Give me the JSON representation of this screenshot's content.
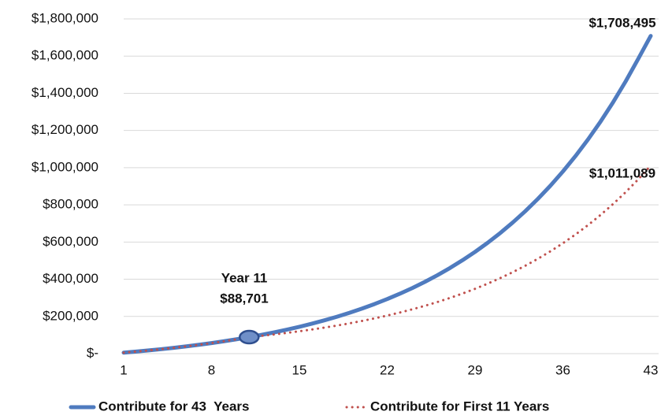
{
  "chart_data": {
    "type": "line",
    "x": [
      1,
      2,
      3,
      4,
      5,
      6,
      7,
      8,
      9,
      10,
      11,
      12,
      13,
      14,
      15,
      16,
      17,
      18,
      19,
      20,
      21,
      22,
      23,
      24,
      25,
      26,
      27,
      28,
      29,
      30,
      31,
      32,
      33,
      34,
      35,
      36,
      37,
      38,
      39,
      40,
      41,
      42,
      43
    ],
    "series": [
      {
        "name": "Contribute for 43  Years",
        "color": "#4f7bbf",
        "style": "solid",
        "values": [
          5357,
          11134,
          17373,
          24100,
          31362,
          39194,
          47650,
          56771,
          66610,
          77229,
          88701,
          101050,
          114395,
          128792,
          144320,
          161083,
          179161,
          198670,
          219725,
          242441,
          266954,
          293400,
          321935,
          352720,
          385947,
          421792,
          460471,
          502208,
          547240,
          595826,
          648257,
          704824,
          765860,
          831724,
          902788,
          979468,
          1062203,
          1151475,
          1247799,
          1351731,
          1463876,
          1584876,
          1708495
        ]
      },
      {
        "name": "Contribute for First 11 Years",
        "color": "#c0504d",
        "style": "dotted",
        "values": [
          5357,
          11134,
          17373,
          24100,
          31362,
          39194,
          47650,
          56771,
          66610,
          77229,
          88701,
          95708,
          103269,
          111427,
          120230,
          129728,
          139976,
          151034,
          162966,
          175840,
          189731,
          204720,
          220893,
          238344,
          257173,
          277490,
          299411,
          323065,
          348587,
          376125,
          405839,
          437901,
          472495,
          509822,
          550098,
          593556,
          640447,
          691042,
          745634,
          804539,
          868097,
          936677,
          1011089
        ]
      }
    ],
    "xlim": [
      1,
      43
    ],
    "xticks": [
      1,
      8,
      15,
      22,
      29,
      36,
      43
    ],
    "ylim": [
      0,
      1800000
    ],
    "yticks": [
      {
        "value": 0,
        "label": "$-"
      },
      {
        "value": 200000,
        "label": "$200,000"
      },
      {
        "value": 400000,
        "label": "$400,000"
      },
      {
        "value": 600000,
        "label": "$600,000"
      },
      {
        "value": 800000,
        "label": "$800,000"
      },
      {
        "value": 1000000,
        "label": "$1,000,000"
      },
      {
        "value": 1200000,
        "label": "$1,200,000"
      },
      {
        "value": 1400000,
        "label": "$1,400,000"
      },
      {
        "value": 1600000,
        "label": "$1,600,000"
      },
      {
        "value": 1800000,
        "label": "$1,800,000"
      }
    ],
    "grid": true,
    "legend": "bottom",
    "annotations": [
      "Year 11",
      "$88,701",
      "$1,708,495",
      "$1,011,089"
    ]
  }
}
